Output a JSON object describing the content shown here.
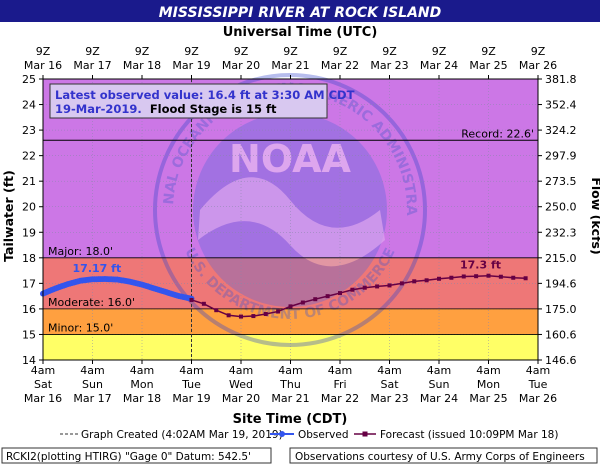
{
  "title": "MISSISSIPPI RIVER AT ROCK ISLAND",
  "top_axis_title": "Universal Time (UTC)",
  "bottom_axis_title": "Site Time (CDT)",
  "left_axis_title": "Tailwater (ft)",
  "right_axis_title": "Flow (kcfs)",
  "utc_ticks": [
    {
      "l1": "9Z",
      "l2": "Mar 16"
    },
    {
      "l1": "9Z",
      "l2": "Mar 17"
    },
    {
      "l1": "9Z",
      "l2": "Mar 18"
    },
    {
      "l1": "9Z",
      "l2": "Mar 19"
    },
    {
      "l1": "9Z",
      "l2": "Mar 20"
    },
    {
      "l1": "9Z",
      "l2": "Mar 21"
    },
    {
      "l1": "9Z",
      "l2": "Mar 22"
    },
    {
      "l1": "9Z",
      "l2": "Mar 23"
    },
    {
      "l1": "9Z",
      "l2": "Mar 24"
    },
    {
      "l1": "9Z",
      "l2": "Mar 25"
    },
    {
      "l1": "9Z",
      "l2": "Mar 26"
    }
  ],
  "site_ticks": [
    {
      "l1": "4am",
      "l2": "Sat",
      "l3": "Mar 16"
    },
    {
      "l1": "4am",
      "l2": "Sun",
      "l3": "Mar 17"
    },
    {
      "l1": "4am",
      "l2": "Mon",
      "l3": "Mar 18"
    },
    {
      "l1": "4am",
      "l2": "Tue",
      "l3": "Mar 19"
    },
    {
      "l1": "4am",
      "l2": "Wed",
      "l3": "Mar 20"
    },
    {
      "l1": "4am",
      "l2": "Thu",
      "l3": "Mar 21"
    },
    {
      "l1": "4am",
      "l2": "Fri",
      "l3": "Mar 22"
    },
    {
      "l1": "4am",
      "l2": "Sat",
      "l3": "Mar 23"
    },
    {
      "l1": "4am",
      "l2": "Sun",
      "l3": "Mar 24"
    },
    {
      "l1": "4am",
      "l2": "Mon",
      "l3": "Mar 25"
    },
    {
      "l1": "4am",
      "l2": "Tue",
      "l3": "Mar 26"
    }
  ],
  "flow_ticks": [
    "146.6",
    "160.6",
    "175.0",
    "194.6",
    "215.0",
    "232.3",
    "250.0",
    "273.5",
    "297.9",
    "324.2",
    "352.4",
    "381.8"
  ],
  "info_box": {
    "line1": "Latest observed value: 16.4 ft at 3:30 AM CDT",
    "line2_date": "19-Mar-2019.",
    "line2_rest": "Flood Stage is 15 ft"
  },
  "stage_labels": {
    "record": "Record: 22.6'",
    "major": "Major: 18.0'",
    "moderate": "Moderate: 16.0'",
    "minor": "Minor: 15.0'"
  },
  "annotations": {
    "observed_peak": "17.17 ft",
    "forecast_peak": "17.3 ft"
  },
  "legend": {
    "graph_created": "Graph Created (4:02AM Mar 19, 2019)",
    "observed": "Observed",
    "forecast": "Forecast (issued 10:09PM Mar 18)"
  },
  "footer": {
    "left": "RCKI2(plotting HTIRG) \"Gage 0\" Datum:  542.5'",
    "right": "Observations courtesy of U.S. Army Corps of Engineers"
  },
  "watermark": {
    "top_text": "NATIONAL OCEANIC AND ATMOSPHERIC ADMINISTRATION",
    "bottom_text": "U.S. DEPARTMENT OF COMMERCE",
    "center_text": "NOAA"
  },
  "colors": {
    "title_bg": "#1a1a8c",
    "above_major": "#cc77e6",
    "major": "#ee7777",
    "moderate": "#ffa040",
    "minor": "#ffff66",
    "observed": "#3355ee",
    "forecast": "#660044",
    "info_text": "#3333cc"
  },
  "chart_data": {
    "type": "line",
    "title": "MISSISSIPPI RIVER AT ROCK ISLAND",
    "xlabel": "Site Time (CDT)",
    "ylabel": "Tailwater (ft)",
    "y2label": "Flow (kcfs)",
    "xlim_days": [
      "Mar 16 4am",
      "Mar 26 4am"
    ],
    "ylim": [
      14,
      25
    ],
    "grid": true,
    "graph_created_day": 3.0,
    "flood_stages": {
      "action": null,
      "minor": 15.0,
      "moderate": 16.0,
      "major": 18.0,
      "record": 22.6
    },
    "series": [
      {
        "name": "Observed",
        "x_days": [
          0.0,
          0.25,
          0.5,
          0.75,
          1.0,
          1.25,
          1.5,
          1.75,
          2.0,
          2.25,
          2.5,
          2.75,
          3.0
        ],
        "values": [
          16.6,
          16.8,
          16.97,
          17.1,
          17.16,
          17.17,
          17.15,
          17.07,
          16.95,
          16.8,
          16.65,
          16.5,
          16.4
        ]
      },
      {
        "name": "Forecast (issued 10:09PM Mar 18)",
        "x_days": [
          3.0,
          3.25,
          3.5,
          3.75,
          4.0,
          4.25,
          4.5,
          4.75,
          5.0,
          5.25,
          5.5,
          5.75,
          6.0,
          6.25,
          6.5,
          6.75,
          7.0,
          7.25,
          7.5,
          7.75,
          8.0,
          8.25,
          8.5,
          8.75,
          9.0,
          9.25,
          9.5,
          9.75
        ],
        "values": [
          16.35,
          16.2,
          15.95,
          15.75,
          15.7,
          15.72,
          15.8,
          15.9,
          16.1,
          16.25,
          16.38,
          16.5,
          16.62,
          16.75,
          16.83,
          16.88,
          16.92,
          17.0,
          17.08,
          17.12,
          17.18,
          17.22,
          17.27,
          17.28,
          17.3,
          17.26,
          17.22,
          17.2
        ]
      }
    ]
  }
}
